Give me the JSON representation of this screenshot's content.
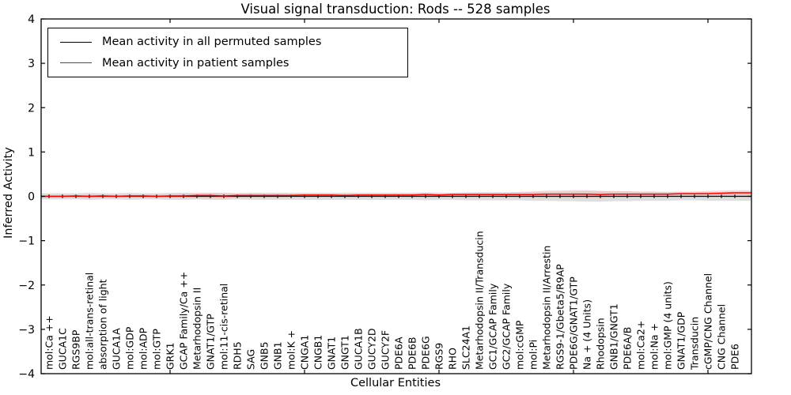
{
  "title": "Visual signal transduction: Rods -- 528 samples",
  "axes": {
    "xlabel": "Cellular Entities",
    "ylabel": "Inferred Activity"
  },
  "legend": {
    "items": [
      {
        "label": "Mean activity in all permuted samples",
        "color": "#000000"
      },
      {
        "label": "Mean activity in patient samples",
        "color": "#ff0000"
      }
    ]
  },
  "chart_data": {
    "type": "line",
    "title": "Visual signal transduction: Rods -- 528 samples",
    "xlabel": "Cellular Entities",
    "ylabel": "Inferred Activity",
    "ylim": [
      -4,
      4
    ],
    "yticks": [
      -4,
      -3,
      -2,
      -1,
      0,
      1,
      2,
      3,
      4
    ],
    "xticks_major": [
      10,
      20,
      30,
      40,
      50
    ],
    "grid": false,
    "legend_position": "upper left",
    "categories": [
      "mol:Ca ++",
      "GUCA1C",
      "RGS9BP",
      "mol:all-trans-retinal",
      "absorption of light",
      "GUCA1A",
      "mol:GDP",
      "mol:ADP",
      "mol:GTP",
      "GRK1",
      "GCAP Family/Ca ++",
      "Metarhodopsin II",
      "GNAT1/GTP",
      "mol:11-cis-retinal",
      "RDH5",
      "SAG",
      "GNB5",
      "GNB1",
      "mol:K +",
      "CNGA1",
      "CNGB1",
      "GNAT1",
      "GNGT1",
      "GUCA1B",
      "GUCY2D",
      "GUCY2F",
      "PDE6A",
      "PDE6B",
      "PDE6G",
      "RGS9",
      "RHO",
      "SLC24A1",
      "Metarhodopsin II/Transducin",
      "GC1/GCAP Family",
      "GC2/GCAP Family",
      "mol:cGMP",
      "mol:Pi",
      "Metarhodopsin II/Arrestin",
      "RGS9-1/Gbeta5/R9AP",
      "PDE6G/GNAT1/GTP",
      "Na + (4 Units)",
      "Rhodopsin",
      "GNB1/GNGT1",
      "PDE6A/B",
      "mol:Ca2+",
      "mol:Na +",
      "mol:GMP (4 units)",
      "GNAT1/GDP",
      "Transducin",
      "cGMP/CNG Channel",
      "CNG Channel",
      "PDE6"
    ],
    "series": [
      {
        "name": "Mean activity in all permuted samples",
        "color": "#000000",
        "marker": "vertical-dash",
        "values": [
          0,
          0,
          0,
          0,
          0,
          0,
          0,
          0,
          0,
          0,
          0,
          0,
          0,
          0,
          0,
          0,
          0,
          0,
          0,
          0,
          0,
          0,
          0,
          0,
          0,
          0,
          0,
          0,
          0,
          0,
          0,
          0,
          0,
          0,
          0,
          0,
          0,
          0,
          0,
          0,
          0,
          0,
          0,
          0,
          0,
          0,
          0,
          0,
          0,
          0,
          0,
          0
        ]
      },
      {
        "name": "Mean activity in patient samples",
        "color": "#ff0000",
        "marker": "none",
        "values": [
          0.0,
          0.0,
          0.01,
          0.0,
          0.01,
          0.0,
          0.01,
          0.01,
          0.0,
          0.01,
          0.01,
          0.02,
          0.02,
          0.01,
          0.02,
          0.02,
          0.02,
          0.02,
          0.02,
          0.03,
          0.03,
          0.03,
          0.02,
          0.03,
          0.03,
          0.03,
          0.03,
          0.03,
          0.04,
          0.03,
          0.04,
          0.04,
          0.04,
          0.04,
          0.04,
          0.04,
          0.04,
          0.05,
          0.05,
          0.05,
          0.05,
          0.04,
          0.05,
          0.05,
          0.05,
          0.05,
          0.05,
          0.06,
          0.06,
          0.06,
          0.07,
          0.08
        ]
      }
    ],
    "bands": [
      {
        "name": "permuted-samples-spread",
        "color": "#d8d8d8",
        "center_series": 0,
        "halfwidths": [
          0.07,
          0.07,
          0.07,
          0.08,
          0.07,
          0.07,
          0.08,
          0.07,
          0.07,
          0.08,
          0.08,
          0.07,
          0.08,
          0.08,
          0.07,
          0.08,
          0.08,
          0.08,
          0.08,
          0.08,
          0.08,
          0.08,
          0.08,
          0.08,
          0.08,
          0.08,
          0.08,
          0.08,
          0.09,
          0.08,
          0.08,
          0.09,
          0.09,
          0.09,
          0.09,
          0.09,
          0.1,
          0.1,
          0.11,
          0.11,
          0.12,
          0.12,
          0.11,
          0.11,
          0.1,
          0.1,
          0.1,
          0.09,
          0.09,
          0.1,
          0.1,
          0.1
        ]
      },
      {
        "name": "patient-samples-spread",
        "color": "#f3b8b8",
        "center_series": 1,
        "halfwidths": [
          0.02,
          0.02,
          0.02,
          0.03,
          0.03,
          0.02,
          0.03,
          0.03,
          0.03,
          0.04,
          0.05,
          0.06,
          0.06,
          0.06,
          0.05,
          0.05,
          0.04,
          0.04,
          0.03,
          0.03,
          0.03,
          0.03,
          0.03,
          0.03,
          0.03,
          0.03,
          0.04,
          0.04,
          0.04,
          0.04,
          0.04,
          0.04,
          0.05,
          0.05,
          0.05,
          0.06,
          0.07,
          0.08,
          0.08,
          0.09,
          0.09,
          0.08,
          0.07,
          0.07,
          0.06,
          0.06,
          0.05,
          0.05,
          0.05,
          0.06,
          0.06,
          0.06
        ]
      }
    ]
  }
}
